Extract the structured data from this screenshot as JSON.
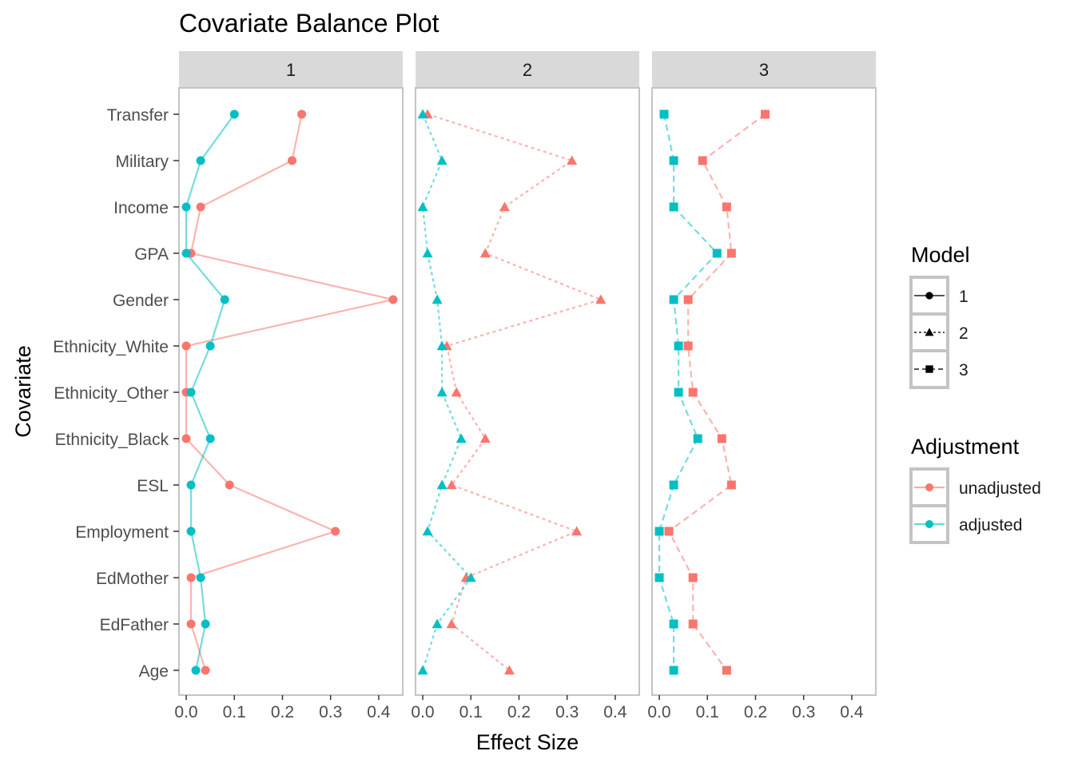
{
  "chart_data": {
    "type": "line",
    "title": "Covariate Balance Plot",
    "xlabel": "Effect Size",
    "ylabel": "Covariate",
    "xlim": [
      -0.015,
      0.45
    ],
    "x_ticks": [
      0.0,
      0.1,
      0.2,
      0.3,
      0.4
    ],
    "x_tick_labels": [
      "0.0",
      "0.1",
      "0.2",
      "0.3",
      "0.4"
    ],
    "facets": [
      "1",
      "2",
      "3"
    ],
    "categories": [
      "Transfer",
      "Military",
      "Income",
      "GPA",
      "Gender",
      "Ethnicity_White",
      "Ethnicity_Other",
      "Ethnicity_Black",
      "ESL",
      "Employment",
      "EdMother",
      "EdFather",
      "Age"
    ],
    "grid": false,
    "panel_border": true,
    "legend_position": "right",
    "colors": {
      "unadjusted": "#F8766D",
      "adjusted": "#00BFC4"
    },
    "legend": {
      "model": {
        "title": "Model",
        "entries": [
          "1",
          "2",
          "3"
        ]
      },
      "adjustment": {
        "title": "Adjustment",
        "entries": [
          "unadjusted",
          "adjusted"
        ]
      }
    },
    "panels": [
      {
        "model": "1",
        "shape": "circle",
        "linetype": "solid",
        "series": [
          {
            "name": "unadjusted",
            "values": [
              0.24,
              0.22,
              0.03,
              0.01,
              0.43,
              0.0,
              0.0,
              0.0,
              0.09,
              0.31,
              0.01,
              0.01,
              0.04
            ]
          },
          {
            "name": "adjusted",
            "values": [
              0.1,
              0.03,
              0.0,
              0.0,
              0.08,
              0.05,
              0.01,
              0.05,
              0.01,
              0.01,
              0.03,
              0.04,
              0.02
            ]
          }
        ]
      },
      {
        "model": "2",
        "shape": "triangle",
        "linetype": "dotted",
        "series": [
          {
            "name": "unadjusted",
            "values": [
              0.01,
              0.31,
              0.17,
              0.13,
              0.37,
              0.05,
              0.07,
              0.13,
              0.06,
              0.32,
              0.09,
              0.06,
              0.18
            ]
          },
          {
            "name": "adjusted",
            "values": [
              0.0,
              0.04,
              0.0,
              0.01,
              0.03,
              0.04,
              0.04,
              0.08,
              0.04,
              0.01,
              0.1,
              0.03,
              0.0
            ]
          }
        ]
      },
      {
        "model": "3",
        "shape": "square",
        "linetype": "dashed",
        "series": [
          {
            "name": "unadjusted",
            "values": [
              0.22,
              0.09,
              0.14,
              0.15,
              0.06,
              0.06,
              0.07,
              0.13,
              0.15,
              0.02,
              0.07,
              0.07,
              0.14
            ]
          },
          {
            "name": "adjusted",
            "values": [
              0.01,
              0.03,
              0.03,
              0.12,
              0.03,
              0.04,
              0.04,
              0.08,
              0.03,
              0.0,
              0.0,
              0.03,
              0.03
            ]
          }
        ]
      }
    ]
  }
}
